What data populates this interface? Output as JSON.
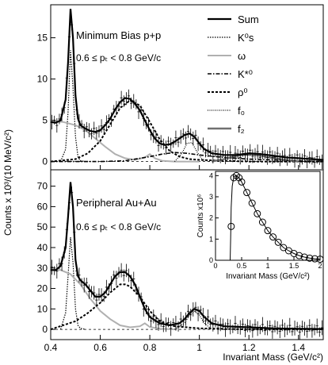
{
  "figure": {
    "ylabel_main": "Counts x 10³/(10 MeV/c²)",
    "xlabel_main": "Invariant Mass (GeV/c²)"
  },
  "chart_data": [
    {
      "id": "top",
      "type": "line",
      "annotation_1": "Minimum Bias p+p",
      "annotation_2": "0.6 ≤ pₜ < 0.8 GeV/c",
      "xlim": [
        0.4,
        1.5
      ],
      "ylim": [
        -1,
        19
      ],
      "xticks": [
        0.4,
        0.6,
        0.8,
        1.0,
        1.2,
        1.4
      ],
      "xtick_labels": [
        "0.4",
        "0.6",
        "0.8",
        "1",
        "1.2",
        "1.4"
      ],
      "yticks": [
        0,
        5,
        10,
        15
      ],
      "ytick_labels": [
        "0",
        "5",
        "10",
        "15"
      ],
      "legend": {
        "placement": "top-right",
        "entries": [
          {
            "label": "Sum",
            "style": "solid-thick",
            "color": "#000000"
          },
          {
            "label": "K⁰s",
            "style": "dotted",
            "color": "#000000"
          },
          {
            "label": "ω",
            "style": "solid",
            "color": "#b0b0b0"
          },
          {
            "label": "K*⁰",
            "style": "dash-dot",
            "color": "#000000"
          },
          {
            "label": "ρ⁰",
            "style": "dashed",
            "color": "#000000"
          },
          {
            "label": "f₀",
            "style": "dotted-fine",
            "color": "#000000"
          },
          {
            "label": "f₂",
            "style": "solid-thick",
            "color": "#707070"
          }
        ]
      },
      "series": [
        {
          "name": "Sum",
          "x": [
            0.4,
            0.42,
            0.44,
            0.46,
            0.47,
            0.48,
            0.49,
            0.5,
            0.51,
            0.52,
            0.54,
            0.56,
            0.58,
            0.6,
            0.62,
            0.64,
            0.66,
            0.68,
            0.7,
            0.72,
            0.74,
            0.76,
            0.78,
            0.8,
            0.82,
            0.84,
            0.86,
            0.88,
            0.9,
            0.92,
            0.94,
            0.96,
            0.98,
            1.0,
            1.02,
            1.05,
            1.1,
            1.15,
            1.2,
            1.25,
            1.3,
            1.35,
            1.4,
            1.45,
            1.5
          ],
          "y": [
            4.8,
            4.7,
            5.0,
            7.5,
            12.0,
            18.5,
            15.0,
            8.0,
            5.2,
            4.4,
            4.0,
            3.7,
            3.6,
            3.8,
            4.4,
            5.2,
            6.3,
            7.2,
            7.7,
            7.6,
            7.0,
            6.2,
            5.0,
            3.8,
            2.8,
            2.2,
            2.0,
            2.1,
            2.4,
            2.8,
            3.2,
            3.4,
            3.0,
            2.2,
            1.5,
            1.0,
            0.8,
            0.8,
            1.0,
            0.9,
            0.7,
            0.5,
            0.4,
            0.3,
            0.2
          ]
        },
        {
          "name": "K⁰s",
          "x": [
            0.44,
            0.46,
            0.47,
            0.48,
            0.49,
            0.5,
            0.51,
            0.52,
            0.54
          ],
          "y": [
            0.0,
            1.5,
            6.0,
            13.5,
            9.0,
            3.0,
            0.6,
            0.1,
            0.0
          ]
        },
        {
          "name": "ω",
          "x": [
            0.4,
            0.45,
            0.5,
            0.54,
            0.58,
            0.62,
            0.66,
            0.7,
            0.74,
            0.78,
            0.8,
            0.82,
            0.85,
            0.9,
            1.0
          ],
          "y": [
            4.9,
            4.8,
            4.4,
            3.8,
            2.8,
            1.8,
            0.9,
            0.4,
            0.2,
            0.5,
            0.9,
            0.4,
            0.1,
            0.0,
            0.0
          ]
        },
        {
          "name": "K*⁰",
          "x": [
            0.4,
            0.6,
            0.7,
            0.8,
            0.85,
            0.9,
            0.95,
            1.0,
            1.1,
            1.2,
            1.3,
            1.4,
            1.5
          ],
          "y": [
            0.0,
            0.0,
            0.1,
            0.6,
            0.9,
            1.1,
            1.0,
            0.8,
            0.5,
            0.3,
            0.2,
            0.1,
            0.0
          ]
        },
        {
          "name": "ρ⁰",
          "x": [
            0.4,
            0.5,
            0.55,
            0.6,
            0.64,
            0.68,
            0.72,
            0.76,
            0.8,
            0.84,
            0.88,
            0.92,
            0.96,
            1.0,
            1.1,
            1.2,
            1.3,
            1.4,
            1.5
          ],
          "y": [
            0.0,
            0.3,
            1.0,
            2.5,
            4.5,
            6.5,
            7.4,
            6.8,
            4.8,
            2.7,
            1.3,
            0.6,
            0.3,
            0.2,
            0.1,
            0.0,
            0.0,
            0.0,
            0.0
          ]
        },
        {
          "name": "f₀",
          "x": [
            0.9,
            0.93,
            0.95,
            0.97,
            0.99,
            1.01,
            1.04
          ],
          "y": [
            0.0,
            1.0,
            2.2,
            2.3,
            1.2,
            0.3,
            0.0
          ]
        },
        {
          "name": "f₂",
          "x": [
            1.05,
            1.1,
            1.15,
            1.2,
            1.25,
            1.3,
            1.35,
            1.4
          ],
          "y": [
            0.0,
            0.3,
            0.7,
            0.9,
            0.7,
            0.4,
            0.2,
            0.0
          ]
        }
      ]
    },
    {
      "id": "bottom",
      "type": "line",
      "annotation_1": "Peripheral Au+Au",
      "annotation_2": "0.6 ≤ pₜ < 0.8 GeV/c",
      "xlim": [
        0.4,
        1.5
      ],
      "ylim": [
        -5,
        78
      ],
      "xticks": [
        0.4,
        0.6,
        0.8,
        1.0,
        1.2,
        1.4
      ],
      "xtick_labels": [
        "0.4",
        "0.6",
        "0.8",
        "1",
        "1.2",
        "1.4"
      ],
      "yticks": [
        0,
        10,
        20,
        30,
        40,
        50,
        60,
        70
      ],
      "ytick_labels": [
        "0",
        "10",
        "20",
        "30",
        "40",
        "50",
        "60",
        "70"
      ],
      "series": [
        {
          "name": "Sum",
          "x": [
            0.4,
            0.42,
            0.44,
            0.46,
            0.47,
            0.48,
            0.49,
            0.5,
            0.51,
            0.52,
            0.54,
            0.56,
            0.58,
            0.6,
            0.62,
            0.64,
            0.66,
            0.68,
            0.7,
            0.72,
            0.74,
            0.76,
            0.78,
            0.8,
            0.84,
            0.88,
            0.92,
            0.94,
            0.96,
            0.98,
            1.0,
            1.02,
            1.05,
            1.1,
            1.2,
            1.3,
            1.4,
            1.5
          ],
          "y": [
            29,
            29,
            31,
            40,
            55,
            72,
            60,
            34,
            26,
            24,
            22,
            19,
            16,
            16,
            18,
            22,
            26,
            28,
            28,
            26,
            22,
            16,
            10,
            6,
            3,
            2,
            3,
            5,
            8,
            10,
            9,
            6,
            3,
            1.5,
            1,
            0.5,
            0.3,
            0.2
          ]
        },
        {
          "name": "K⁰s",
          "x": [
            0.44,
            0.46,
            0.47,
            0.48,
            0.49,
            0.5,
            0.51,
            0.52,
            0.54
          ],
          "y": [
            0,
            8,
            26,
            45,
            33,
            10,
            2,
            0.5,
            0
          ]
        },
        {
          "name": "ω",
          "x": [
            0.4,
            0.44,
            0.48,
            0.52,
            0.56,
            0.6,
            0.64,
            0.68,
            0.72,
            0.76,
            0.78,
            0.8,
            0.84,
            0.9
          ],
          "y": [
            29,
            29,
            27,
            22,
            15,
            9,
            5,
            2,
            1,
            1.5,
            3,
            1.2,
            0.3,
            0
          ]
        },
        {
          "name": "ρ⁰",
          "x": [
            0.4,
            0.5,
            0.55,
            0.6,
            0.64,
            0.68,
            0.7,
            0.72,
            0.76,
            0.8,
            0.84,
            0.9,
            1.0,
            1.2,
            1.5
          ],
          "y": [
            0,
            4,
            8,
            13,
            18,
            22,
            22,
            21,
            16,
            9,
            4,
            1.5,
            0.5,
            0,
            0
          ]
        },
        {
          "name": "f₀",
          "x": [
            0.9,
            0.94,
            0.96,
            0.98,
            1.0,
            1.02,
            1.05
          ],
          "y": [
            0,
            3,
            7,
            9,
            7,
            3,
            0
          ]
        }
      ]
    },
    {
      "id": "inset",
      "type": "scatter",
      "xlabel": "Invariant Mass (GeV/c²)",
      "ylabel": "Counts x10⁶",
      "xlim": [
        0,
        2
      ],
      "ylim": [
        0,
        4.2
      ],
      "xticks": [
        0,
        0.5,
        1,
        1.5,
        2
      ],
      "xtick_labels": [
        "0",
        "0.5",
        "1",
        "1.5",
        "2"
      ],
      "yticks": [
        0,
        1,
        2,
        3,
        4
      ],
      "ytick_labels": [
        "0",
        "1",
        "2",
        "3",
        "4"
      ],
      "curve": {
        "x": [
          0.28,
          0.29,
          0.3,
          0.32,
          0.35,
          0.4,
          0.45,
          0.5,
          0.6,
          0.7,
          0.8,
          0.9,
          1.0,
          1.1,
          1.2,
          1.3,
          1.4,
          1.5,
          1.6,
          1.7,
          1.8,
          1.9,
          2.0
        ],
        "y": [
          0.0,
          1.0,
          2.5,
          3.5,
          3.95,
          4.0,
          3.9,
          3.7,
          3.2,
          2.7,
          2.2,
          1.8,
          1.4,
          1.1,
          0.85,
          0.6,
          0.45,
          0.32,
          0.22,
          0.15,
          0.1,
          0.07,
          0.05
        ]
      },
      "points": {
        "x": [
          0.3,
          0.35,
          0.4,
          0.45,
          0.5,
          0.6,
          0.7,
          0.8,
          0.9,
          1.0,
          1.1,
          1.2,
          1.3,
          1.4,
          1.5,
          1.6,
          1.7,
          1.8,
          1.9,
          2.0
        ],
        "y": [
          1.6,
          3.9,
          4.0,
          3.9,
          3.7,
          3.2,
          2.7,
          2.2,
          1.8,
          1.4,
          1.1,
          0.85,
          0.6,
          0.45,
          0.32,
          0.22,
          0.15,
          0.1,
          0.07,
          0.05
        ]
      }
    }
  ]
}
